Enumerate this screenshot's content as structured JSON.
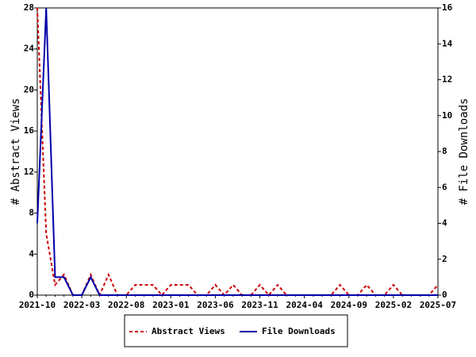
{
  "chart_data": {
    "type": "line",
    "categories": [
      "2021-10",
      null,
      null,
      null,
      null,
      "2022-03",
      null,
      null,
      null,
      null,
      "2022-08",
      null,
      null,
      null,
      null,
      "2023-01",
      null,
      null,
      null,
      null,
      "2023-06",
      null,
      null,
      null,
      null,
      "2023-11",
      null,
      null,
      null,
      null,
      "2024-04",
      null,
      null,
      null,
      null,
      "2024-09",
      null,
      null,
      null,
      null,
      "2025-02",
      null,
      null,
      null,
      null,
      "2025-07"
    ],
    "ylabel": "# Abstract Views",
    "y2label": "# File Downloads",
    "ylim": [
      0,
      28
    ],
    "yticks": [
      0,
      4,
      8,
      12,
      16,
      20,
      24,
      28
    ],
    "y2lim": [
      0,
      16
    ],
    "y2ticks": [
      0,
      2,
      4,
      6,
      8,
      10,
      12,
      14,
      16
    ],
    "legend": "bottom",
    "series": [
      {
        "name": "Abstract Views",
        "color": "#cc0000",
        "dash": true,
        "axis": "y",
        "values": [
          28,
          6,
          1,
          2,
          0,
          0,
          2,
          0,
          2,
          0,
          0,
          1,
          1,
          1,
          0,
          1,
          1,
          1,
          0,
          0,
          1,
          0,
          1,
          0,
          0,
          1,
          0,
          1,
          0,
          0,
          0,
          0,
          0,
          0,
          1,
          0,
          0,
          1,
          0,
          0,
          1,
          0,
          0,
          0,
          0,
          1
        ]
      },
      {
        "name": "File Downloads",
        "color": "#0000aa",
        "dash": false,
        "axis": "y2",
        "values": [
          4,
          16,
          1,
          1,
          0,
          0,
          1,
          0,
          0,
          0,
          0,
          0,
          0,
          0,
          0,
          0,
          0,
          0,
          0,
          0,
          0,
          0,
          0,
          0,
          0,
          0,
          0,
          0,
          0,
          0,
          0,
          0,
          0,
          0,
          0,
          0,
          0,
          0,
          0,
          0,
          0,
          0,
          0,
          0,
          0,
          0
        ]
      }
    ]
  }
}
